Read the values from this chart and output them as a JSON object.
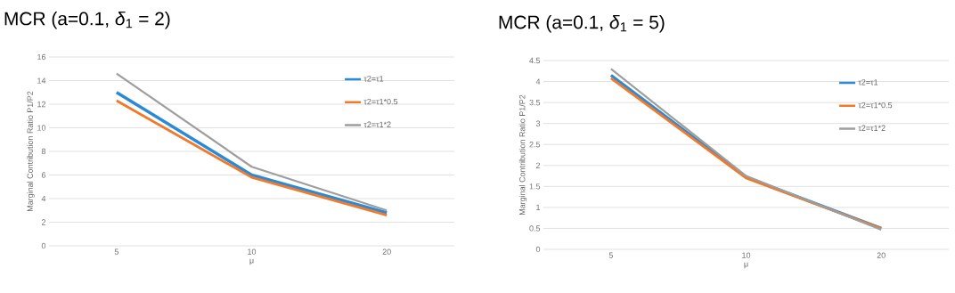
{
  "chart_data": [
    {
      "type": "line",
      "title": "MCR (a=0.1, *δ*$_{1}$ = 2)",
      "xlabel": "μ",
      "ylabel": "Marginal Contribution Ratio P1/P2",
      "categories": [
        "5",
        "10",
        "20"
      ],
      "ylim": [
        0,
        16
      ],
      "yticks": [
        0,
        2,
        4,
        6,
        8,
        10,
        12,
        14,
        16
      ],
      "grid": "y",
      "legend": "top right",
      "series": [
        {
          "name": "τ2=τ1",
          "color": "#2b8ad8",
          "values": [
            13,
            6,
            2.8
          ]
        },
        {
          "name": "τ2=τ1*0.5",
          "color": "#f07a2a",
          "values": [
            12.3,
            5.8,
            2.6
          ]
        },
        {
          "name": "τ2=τ1*2",
          "color": "#9e9e9e",
          "values": [
            14.6,
            6.7,
            3.0
          ]
        }
      ]
    },
    {
      "type": "line",
      "title": "MCR (a=0.1, *δ*$_{1}$ = 5)",
      "xlabel": "μ",
      "ylabel": "Marginal Contribution Ratio P1/P2",
      "categories": [
        "5",
        "10",
        "20"
      ],
      "ylim": [
        0,
        4.5
      ],
      "yticks": [
        0,
        0.5,
        1,
        1.5,
        2,
        2.5,
        3,
        3.5,
        4,
        4.5
      ],
      "grid": "y",
      "legend": "top right",
      "series": [
        {
          "name": "τ2=τ1",
          "color": "#2b8ad8",
          "values": [
            4.15,
            1.72,
            0.5
          ]
        },
        {
          "name": "τ2=τ1*0.5",
          "color": "#f07a2a",
          "values": [
            4.08,
            1.7,
            0.5
          ]
        },
        {
          "name": "τ2=τ1*2",
          "color": "#9e9e9e",
          "values": [
            4.3,
            1.75,
            0.47
          ]
        }
      ]
    }
  ]
}
